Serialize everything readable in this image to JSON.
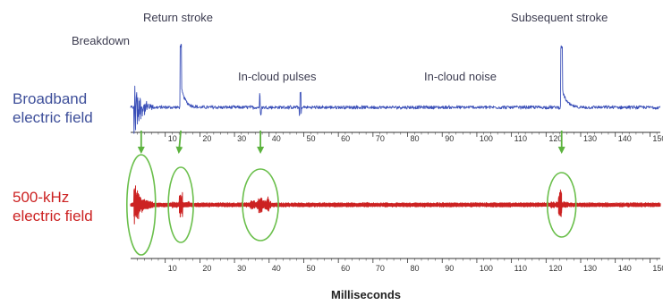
{
  "chart_data": {
    "type": "line",
    "xlabel": "Milliseconds",
    "xlim": [
      0,
      153
    ],
    "xticks": [
      10,
      20,
      30,
      40,
      50,
      60,
      70,
      80,
      90,
      100,
      110,
      120,
      130,
      140,
      150
    ],
    "series": [
      {
        "name_lines": [
          "Broadband",
          "electric field"
        ],
        "color": "#3a4fb8",
        "baseline": 0,
        "noise_level": 0.6,
        "events": [
          {
            "x": 1.5,
            "peak": 11.5,
            "shape": "burst"
          },
          {
            "x": 14.5,
            "peak": 15.0,
            "shape": "stroke"
          },
          {
            "x": 37.5,
            "peak": 3.0,
            "shape": "pulse"
          },
          {
            "x": 49.0,
            "peak": 3.5,
            "shape": "pulse"
          },
          {
            "x": 124.5,
            "peak": 14.5,
            "shape": "stroke"
          }
        ]
      },
      {
        "name_lines": [
          "500-kHz",
          "electric field"
        ],
        "color": "#cc2222",
        "baseline": 0,
        "noise_level": 0.6,
        "events": [
          {
            "x": 1.5,
            "peak": 5.5,
            "shape": "burst"
          },
          {
            "x": 14.5,
            "peak": 2.5,
            "shape": "spike"
          },
          {
            "x": 37.5,
            "peak": 3.0,
            "shape": "cluster"
          },
          {
            "x": 124.0,
            "peak": 3.2,
            "shape": "spike"
          }
        ]
      }
    ],
    "annotations": [
      {
        "text": "Breakdown",
        "x": 1.5
      },
      {
        "text": "Return stroke",
        "x": 14.5
      },
      {
        "text": "In-cloud pulses",
        "x": 37.5
      },
      {
        "text": "In-cloud noise",
        "x": 100
      },
      {
        "text": "Subsequent stroke",
        "x": 124.5
      }
    ],
    "highlighted_events_ms": [
      1.5,
      14.5,
      37.5,
      124.5
    ],
    "colors": {
      "highlight": "#6abf4b",
      "axis": "#333333"
    }
  }
}
